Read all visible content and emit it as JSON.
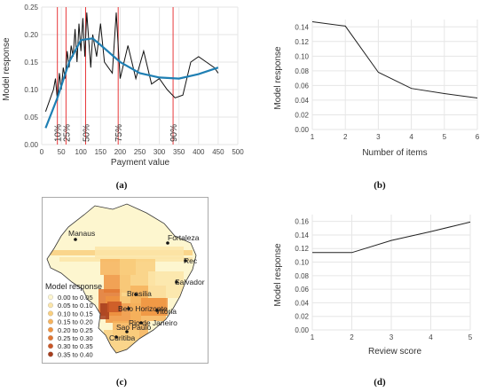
{
  "captions": {
    "a": "(a)",
    "b": "(b)",
    "c": "(c)",
    "d": "(d)"
  },
  "chart_data": [
    {
      "type": "line",
      "panel": "a",
      "xlabel": "Payment value",
      "ylabel": "Model response",
      "xlim": [
        0,
        500
      ],
      "ylim": [
        0,
        0.25
      ],
      "xticks": [
        "0",
        "50",
        "100",
        "150",
        "200",
        "250",
        "300",
        "350",
        "400",
        "450",
        "500"
      ],
      "yticks": [
        "0.00",
        "0.05",
        "0.10",
        "0.15",
        "0.20",
        "0.25"
      ],
      "percentiles": [
        {
          "label": "10%",
          "x": 40
        },
        {
          "label": "25%",
          "x": 62
        },
        {
          "label": "50%",
          "x": 112
        },
        {
          "label": "75%",
          "x": 195
        },
        {
          "label": "90%",
          "x": 335
        }
      ],
      "series": [
        {
          "x": [
            10,
            20,
            25,
            30,
            35,
            40,
            45,
            50,
            55,
            60,
            65,
            70,
            75,
            80,
            85,
            90,
            95,
            100,
            105,
            110,
            115,
            120,
            125,
            130,
            140,
            150,
            160,
            170,
            180,
            190,
            200,
            220,
            240,
            260,
            280,
            300,
            320,
            340,
            360,
            380,
            400,
            420,
            440,
            450
          ],
          "values": [
            0.06,
            0.08,
            0.09,
            0.1,
            0.12,
            0.08,
            0.13,
            0.1,
            0.14,
            0.12,
            0.17,
            0.14,
            0.18,
            0.16,
            0.21,
            0.15,
            0.22,
            0.17,
            0.23,
            0.16,
            0.24,
            0.19,
            0.14,
            0.2,
            0.16,
            0.22,
            0.15,
            0.14,
            0.13,
            0.24,
            0.12,
            0.18,
            0.12,
            0.17,
            0.11,
            0.12,
            0.1,
            0.085,
            0.09,
            0.15,
            0.16,
            0.15,
            0.14,
            0.13
          ]
        },
        {
          "x": [
            10,
            40,
            70,
            100,
            130,
            160,
            200,
            250,
            300,
            350,
            400,
            450
          ],
          "values": [
            0.03,
            0.085,
            0.15,
            0.19,
            0.193,
            0.175,
            0.15,
            0.13,
            0.122,
            0.12,
            0.128,
            0.14
          ]
        }
      ]
    },
    {
      "type": "line",
      "panel": "b",
      "xlabel": "Number of items",
      "ylabel": "Model response",
      "xlim": [
        1,
        6
      ],
      "ylim": [
        0,
        0.15
      ],
      "xticks": [
        "1",
        "2",
        "3",
        "4",
        "5",
        "6"
      ],
      "yticks": [
        "0.00",
        "0.02",
        "0.04",
        "0.06",
        "0.08",
        "0.10",
        "0.12",
        "0.14"
      ],
      "series": [
        {
          "x": [
            1,
            2,
            3,
            4,
            5,
            6
          ],
          "values": [
            0.147,
            0.141,
            0.078,
            0.056,
            0.049,
            0.043
          ]
        }
      ]
    },
    {
      "type": "heatmap",
      "panel": "c",
      "legend_title": "Model response",
      "legend": [
        {
          "label": "0.00 to 0.05",
          "color": "#fdf6cf"
        },
        {
          "label": "0.05 to 0.10",
          "color": "#fbe5a8"
        },
        {
          "label": "0.10 to 0.15",
          "color": "#f9cf7f"
        },
        {
          "label": "0.15 to 0.20",
          "color": "#f6b35d"
        },
        {
          "label": "0.20 to 0.25",
          "color": "#ef9340"
        },
        {
          "label": "0.25 to 0.30",
          "color": "#e07531"
        },
        {
          "label": "0.30 to 0.35",
          "color": "#c95626"
        },
        {
          "label": "0.35 to 0.40",
          "color": "#a63c1c"
        }
      ],
      "cities": [
        "Manaus",
        "Fortaleza",
        "Rec",
        "Salvador",
        "Brasilia",
        "Belo Horizonte",
        "Vitoria",
        "Rio de Janeiro",
        "Sao Paulo",
        "Curitiba"
      ]
    },
    {
      "type": "line",
      "panel": "d",
      "xlabel": "Review score",
      "ylabel": "Model response",
      "xlim": [
        1,
        5
      ],
      "ylim": [
        0,
        0.17
      ],
      "xticks": [
        "1",
        "2",
        "3",
        "4",
        "5"
      ],
      "yticks": [
        "0.00",
        "0.02",
        "0.04",
        "0.06",
        "0.08",
        "0.10",
        "0.12",
        "0.14",
        "0.16"
      ],
      "series": [
        {
          "x": [
            1,
            2,
            3,
            4,
            5
          ],
          "values": [
            0.114,
            0.114,
            0.132,
            0.145,
            0.159
          ]
        }
      ]
    }
  ]
}
